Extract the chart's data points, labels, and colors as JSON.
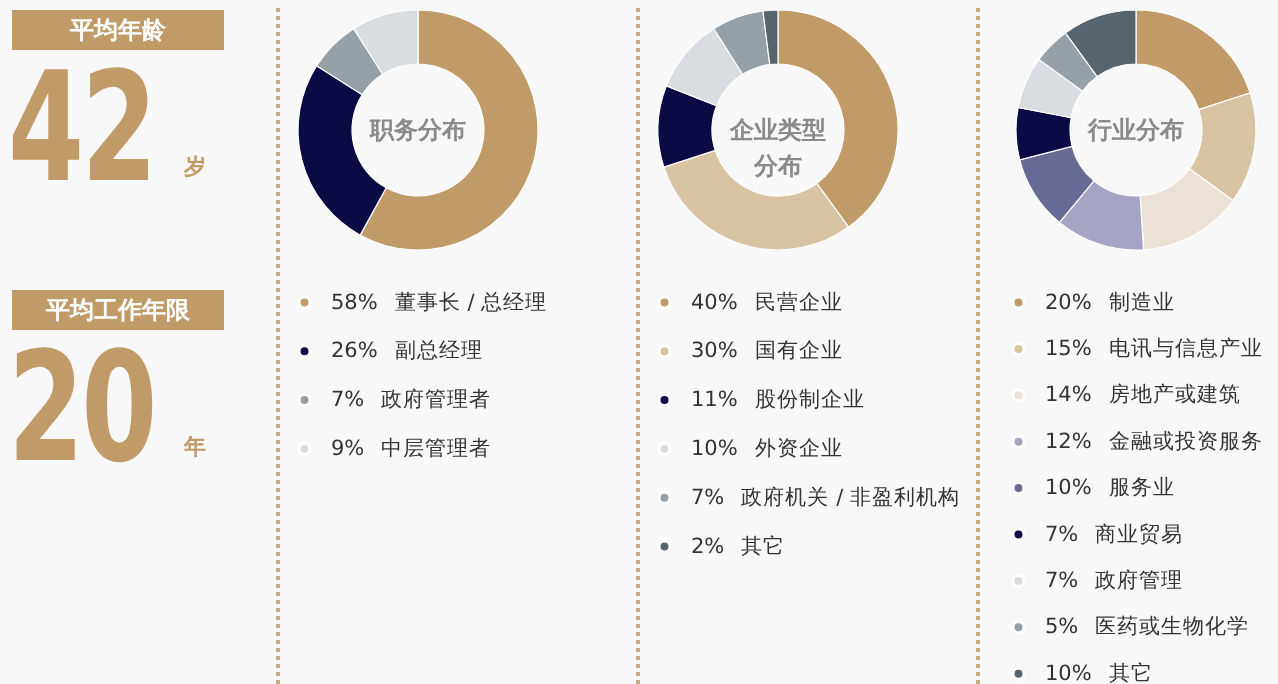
{
  "chart_data": [
    {
      "type": "other",
      "annotations": [
        "平均年龄",
        "42",
        "岁",
        "平均工作年限",
        "20",
        "年"
      ]
    },
    {
      "type": "donut",
      "title": "职务分布",
      "legend": "bottom",
      "categories": [
        "董事长 / 总经理",
        "副总经理",
        "政府管理者",
        "中层管理者"
      ],
      "values": [
        58,
        26,
        7,
        9
      ],
      "value_labels": [
        "58%",
        "26%",
        "7%",
        "9%"
      ],
      "colors": [
        "#c09a67",
        "#0b0a45",
        "#95a0a8",
        "#d9dde1"
      ]
    },
    {
      "type": "donut",
      "title": "企业类型分布",
      "legend": "bottom",
      "categories": [
        "民营企业",
        "国有企业",
        "股份制企业",
        "外资企业",
        "政府机关 / 非盈利机构",
        "其它"
      ],
      "values": [
        40,
        30,
        11,
        10,
        7,
        2
      ],
      "value_labels": [
        "40%",
        "30%",
        "11%",
        "10%",
        "7%",
        "2%"
      ],
      "colors": [
        "#c09a67",
        "#d8c3a2",
        "#0b0a45",
        "#d9dde1",
        "#95a0a8",
        "#56646d"
      ]
    },
    {
      "type": "donut",
      "title": "行业分布",
      "legend": "bottom",
      "categories": [
        "制造业",
        "电讯与信息产业",
        "房地产或建筑",
        "金融或投资服务",
        "服务业",
        "商业贸易",
        "政府管理",
        "医药或生物化学",
        "其它"
      ],
      "values": [
        20,
        15,
        14,
        12,
        10,
        7,
        7,
        5,
        10
      ],
      "value_labels": [
        "20%",
        "15%",
        "14%",
        "12%",
        "10%",
        "7%",
        "7%",
        "5%",
        "10%"
      ],
      "colors": [
        "#c09a67",
        "#d8c3a2",
        "#ebe2d5",
        "#a5a4c4",
        "#676a94",
        "#0b0a45",
        "#d9dde1",
        "#95a0a8",
        "#56646d"
      ]
    }
  ]
}
